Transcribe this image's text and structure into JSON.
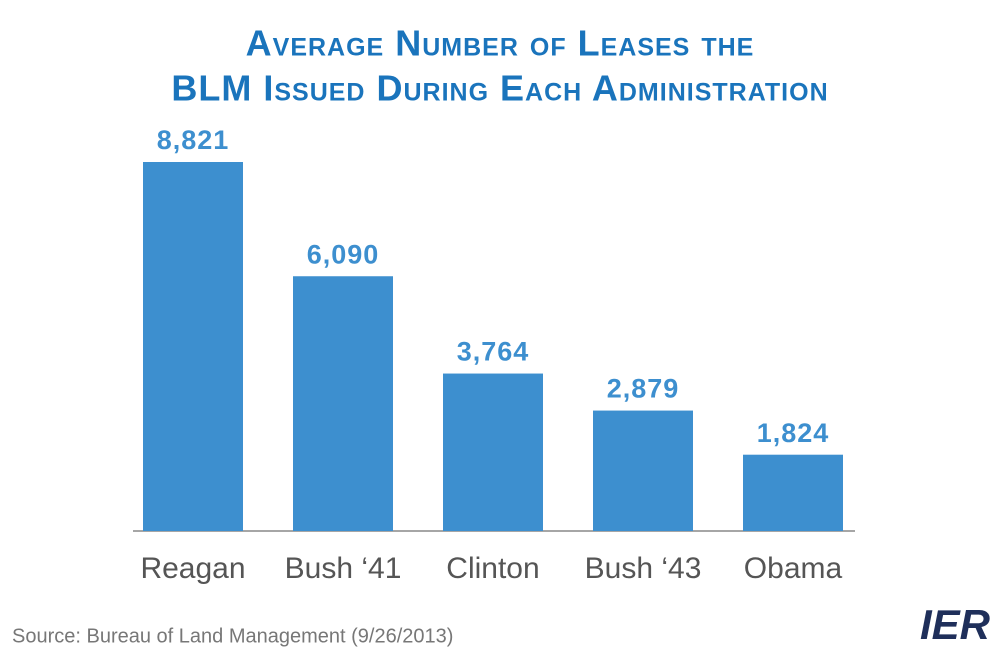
{
  "chart_data": {
    "type": "bar",
    "title": [
      "Average Number of Leases the",
      "BLM Issued During Each Administration"
    ],
    "categories": [
      "Reagan",
      "Bush ‘41",
      "Clinton",
      "Bush ‘43",
      "Obama"
    ],
    "values": [
      8821,
      6090,
      3764,
      2879,
      1824
    ],
    "value_labels": [
      "8,821",
      "6,090",
      "3,764",
      "2,879",
      "1,824"
    ],
    "color": "#3d8fcf",
    "source": "Source: Bureau of Land Management (9/26/2013)",
    "logo": "IER"
  }
}
